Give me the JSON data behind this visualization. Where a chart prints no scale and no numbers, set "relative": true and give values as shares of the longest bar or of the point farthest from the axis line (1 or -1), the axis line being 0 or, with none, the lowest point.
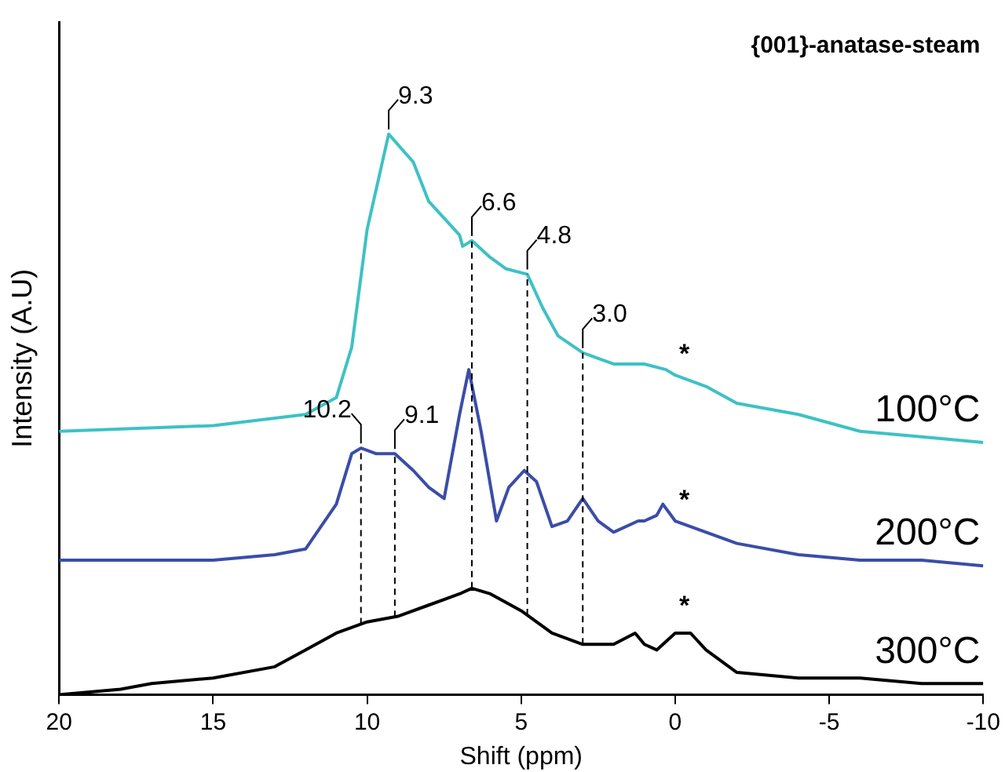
{
  "chart_data": {
    "type": "line",
    "xlabel": "Shift (ppm)",
    "ylabel": "Intensity (A.U)",
    "relative": true,
    "xlim": [
      20,
      -10
    ],
    "xticks": [
      20,
      15,
      10,
      5,
      0,
      -5,
      -10
    ],
    "grid": false,
    "legend": false,
    "marker": "none",
    "line_style": "solid",
    "series": [
      {
        "name": "100°C",
        "color": "#3ec1c4",
        "x": [
          20,
          15,
          12,
          11,
          10.5,
          10,
          9.3,
          8.5,
          8,
          7.5,
          7,
          6.9,
          6.6,
          6,
          5.5,
          4.8,
          4.3,
          3.8,
          3,
          2,
          1,
          0.3,
          0,
          -1,
          -2,
          -4,
          -6,
          -8,
          -10
        ],
        "values": [
          0.47,
          0.48,
          0.5,
          0.53,
          0.62,
          0.83,
          1.0,
          0.95,
          0.88,
          0.85,
          0.82,
          0.8,
          0.81,
          0.78,
          0.76,
          0.75,
          0.69,
          0.64,
          0.61,
          0.59,
          0.59,
          0.58,
          0.57,
          0.55,
          0.52,
          0.5,
          0.47,
          0.46,
          0.45
        ]
      },
      {
        "name": "200°C",
        "color": "#3a4da8",
        "x": [
          20,
          15,
          13,
          12,
          11,
          10.5,
          10.2,
          9.7,
          9.1,
          8.5,
          8,
          7.5,
          7,
          6.7,
          6.3,
          5.8,
          5.4,
          4.9,
          4.5,
          4,
          3.5,
          3,
          2.5,
          2,
          1.2,
          1,
          0.6,
          0.4,
          0,
          -1,
          -2,
          -4,
          -6,
          -8,
          -10
        ],
        "values": [
          0.24,
          0.24,
          0.25,
          0.26,
          0.34,
          0.43,
          0.44,
          0.43,
          0.43,
          0.4,
          0.37,
          0.35,
          0.5,
          0.58,
          0.47,
          0.31,
          0.37,
          0.4,
          0.38,
          0.3,
          0.31,
          0.35,
          0.31,
          0.29,
          0.31,
          0.31,
          0.32,
          0.34,
          0.31,
          0.29,
          0.27,
          0.25,
          0.24,
          0.24,
          0.23
        ]
      },
      {
        "name": "300°C",
        "color": "#000000",
        "x": [
          20,
          18,
          17,
          15,
          13,
          12,
          11,
          10,
          9,
          8,
          7,
          6.6,
          6,
          5,
          4,
          3,
          2,
          1.3,
          1,
          0.6,
          0,
          -0.5,
          -1,
          -2,
          -4,
          -6,
          -8,
          -10
        ],
        "values": [
          0.0,
          0.01,
          0.02,
          0.03,
          0.05,
          0.08,
          0.11,
          0.13,
          0.14,
          0.16,
          0.18,
          0.19,
          0.18,
          0.15,
          0.11,
          0.09,
          0.09,
          0.11,
          0.09,
          0.08,
          0.11,
          0.11,
          0.08,
          0.04,
          0.03,
          0.03,
          0.02,
          0.02
        ]
      }
    ],
    "ref_lines": [
      {
        "axis": "x",
        "value": 10.2,
        "color": "#000000",
        "line_style": "dashed"
      },
      {
        "axis": "x",
        "value": 9.1,
        "color": "#000000",
        "line_style": "dashed"
      },
      {
        "axis": "x",
        "value": 6.6,
        "color": "#000000",
        "line_style": "dashed"
      },
      {
        "axis": "x",
        "value": 4.8,
        "color": "#000000",
        "line_style": "dashed"
      },
      {
        "axis": "x",
        "value": 3.0,
        "color": "#000000",
        "line_style": "dashed"
      }
    ],
    "annotations": [
      "{001}-anatase-steam",
      {
        "text": "9.3",
        "x": 9.3,
        "y": 1.0
      },
      {
        "text": "6.6",
        "x": 6.6,
        "y": 0.81
      },
      {
        "text": "4.8",
        "x": 4.8,
        "y": 0.75
      },
      {
        "text": "3.0",
        "x": 3.0,
        "y": 0.61
      },
      {
        "text": "10.2",
        "x": 10.2,
        "y": 0.44
      },
      {
        "text": "9.1",
        "x": 9.1,
        "y": 0.43
      },
      {
        "text": "*",
        "x": -0.3,
        "y": 0.56
      },
      {
        "text": "*",
        "x": -0.3,
        "y": 0.3
      },
      {
        "text": "*",
        "x": -0.3,
        "y": 0.11
      }
    ]
  }
}
